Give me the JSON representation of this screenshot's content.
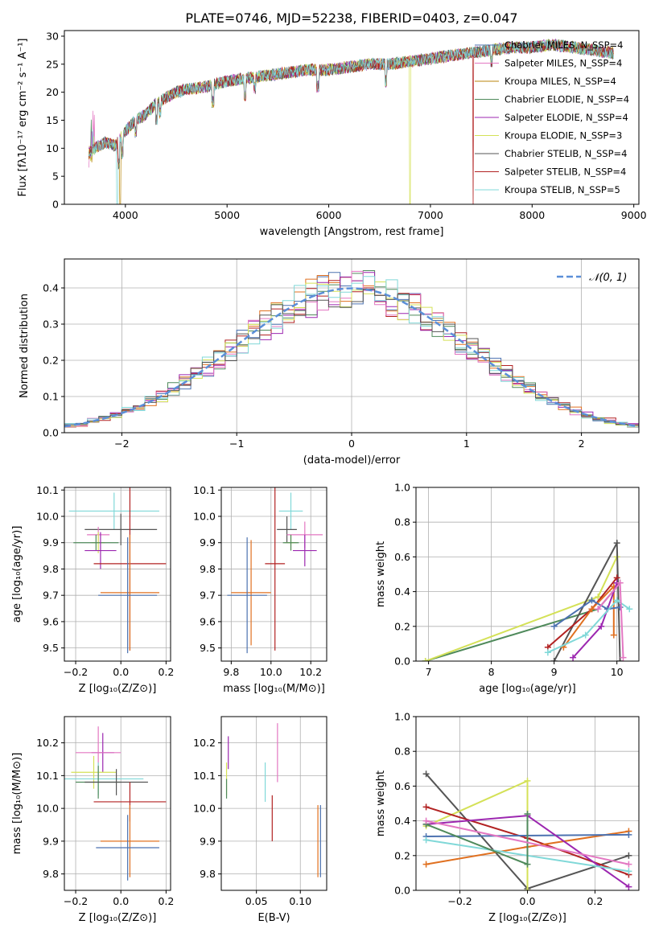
{
  "figure": {
    "title": "PLATE=0746, MJD=52238, FIBERID=0403, z=0.047"
  },
  "colors": {
    "cm": "#4c72b0",
    "sm": "#e377c2",
    "km": "#b8860b",
    "ce": "#4f8a5b",
    "se": "#9c27b0",
    "ke": "#d4e157",
    "cs": "#555555",
    "ss": "#b22222",
    "ks": "#80d8d8",
    "orange": "#e07020",
    "blue": "#5b8fd8"
  },
  "chart_data": [
    {
      "id": "spectrum",
      "type": "line",
      "xlabel": "wavelength [Angstrom, rest frame]",
      "ylabel": "Flux [fλ10⁻¹⁷ erg cm⁻² s⁻¹ A⁻¹]",
      "xlim": [
        3400,
        9050
      ],
      "ylim": [
        0,
        31
      ],
      "xticks": [
        4000,
        5000,
        6000,
        7000,
        8000,
        9000
      ],
      "yticks": [
        0,
        5,
        10,
        15,
        20,
        25,
        30
      ],
      "legend_position": "top-right",
      "continuum": {
        "x": [
          3640,
          3700,
          3800,
          3900,
          4000,
          4100,
          4200,
          4300,
          4400,
          4500,
          4600,
          4800,
          5000,
          5200,
          5400,
          5600,
          5800,
          6000,
          6200,
          6400,
          6600,
          6800,
          7000,
          7200,
          7400,
          7600,
          7800,
          8000,
          8200,
          8400,
          8600,
          8800
        ],
        "y": [
          9,
          10,
          11,
          10.5,
          13,
          15,
          16,
          18,
          19,
          20,
          20.5,
          21,
          22,
          22.5,
          23,
          23.5,
          24,
          24,
          24.5,
          25,
          25,
          25.5,
          26,
          26.5,
          27,
          27.5,
          28,
          28,
          28.5,
          28,
          27.5,
          27
        ]
      },
      "series": [
        {
          "name": "Chabrier MILES, N_SSP=4",
          "color_key": "cm",
          "dropout": null
        },
        {
          "name": "Salpeter MILES, N_SSP=4",
          "color_key": "sm",
          "dropout": null
        },
        {
          "name": "Kroupa MILES, N_SSP=4",
          "color_key": "km",
          "dropout": 3950
        },
        {
          "name": "Chabrier ELODIE, N_SSP=4",
          "color_key": "ce",
          "dropout": null
        },
        {
          "name": "Salpeter ELODIE, N_SSP=4",
          "color_key": "se",
          "dropout": null
        },
        {
          "name": "Kroupa ELODIE, N_SSP=3",
          "color_key": "ke",
          "dropout": 6800
        },
        {
          "name": "Chabrier STELIB, N_SSP=4",
          "color_key": "cs",
          "dropout": null
        },
        {
          "name": "Salpeter STELIB, N_SSP=4",
          "color_key": "ss",
          "dropout": 7420
        },
        {
          "name": "Kroupa STELIB, N_SSP=5",
          "color_key": "ks",
          "dropout": 3920
        }
      ]
    },
    {
      "id": "residuals",
      "type": "line",
      "xlabel": "(data-model)/error",
      "ylabel": "Normed distribution",
      "xlim": [
        -2.5,
        2.5
      ],
      "ylim": [
        0,
        0.48
      ],
      "xticks": [
        -2,
        -1,
        0,
        1,
        2
      ],
      "yticks": [
        0.0,
        0.1,
        0.2,
        0.3,
        0.4
      ],
      "grid": true,
      "legend_position": "top-right",
      "legend": [
        {
          "name": "𝒩(0, 1)",
          "color_key": "blue",
          "dashed": true
        }
      ],
      "bin_width": 0.1,
      "histogram_colors": [
        "cm",
        "orange",
        "ce",
        "ss",
        "se",
        "sm",
        "ke",
        "ks",
        "cs"
      ]
    },
    {
      "id": "age-vs-Z",
      "type": "scatter",
      "xlabel": "Z [log₁₀(Z/Z⊙)]",
      "ylabel": "age  [log₁₀(age/yr)]",
      "xlim": [
        -0.25,
        0.22
      ],
      "ylim": [
        9.45,
        10.11
      ],
      "xticks": [
        -0.2,
        0.0,
        0.2
      ],
      "yticks": [
        9.5,
        9.6,
        9.7,
        9.8,
        9.9,
        10.0,
        10.1
      ],
      "grid": true,
      "points": [
        {
          "x": -0.03,
          "y": 10.02,
          "xerr": 0.2,
          "yerr": 0.07,
          "color_key": "ks"
        },
        {
          "x": 0.0,
          "y": 9.95,
          "xerr": 0.16,
          "yerr": 0.06,
          "color_key": "cs"
        },
        {
          "x": -0.1,
          "y": 9.93,
          "xerr": 0.05,
          "yerr": 0.03,
          "color_key": "sm"
        },
        {
          "x": -0.1,
          "y": 9.9,
          "xerr": 0.03,
          "yerr": 0.04,
          "color_key": "ke"
        },
        {
          "x": -0.11,
          "y": 9.9,
          "xerr": 0.1,
          "yerr": 0.03,
          "color_key": "ce"
        },
        {
          "x": -0.09,
          "y": 9.87,
          "xerr": 0.07,
          "yerr": 0.07,
          "color_key": "se"
        },
        {
          "x": 0.04,
          "y": 9.82,
          "xerr": 0.16,
          "yerr": 0.33,
          "color_key": "ss"
        },
        {
          "x": 0.04,
          "y": 9.71,
          "xerr": 0.13,
          "yerr": 0.22,
          "color_key": "orange"
        },
        {
          "x": 0.03,
          "y": 9.7,
          "xerr": 0.13,
          "yerr": 0.22,
          "color_key": "cm"
        }
      ]
    },
    {
      "id": "age-vs-mass",
      "type": "scatter",
      "xlabel": "mass [log₁₀(M/M⊙)]",
      "ylabel": "",
      "xlim": [
        9.75,
        10.28
      ],
      "ylim": [
        9.45,
        10.11
      ],
      "xticks": [
        9.8,
        10.0,
        10.2
      ],
      "yticks": [
        9.5,
        9.6,
        9.7,
        9.8,
        9.9,
        10.0,
        10.1
      ],
      "grid": true,
      "points": [
        {
          "x": 10.1,
          "y": 10.02,
          "xerr": 0.06,
          "yerr": 0.07,
          "color_key": "ks"
        },
        {
          "x": 10.08,
          "y": 9.95,
          "xerr": 0.05,
          "yerr": 0.05,
          "color_key": "cs"
        },
        {
          "x": 10.17,
          "y": 9.93,
          "xerr": 0.09,
          "yerr": 0.05,
          "color_key": "sm"
        },
        {
          "x": 10.1,
          "y": 9.9,
          "xerr": 0.03,
          "yerr": 0.03,
          "color_key": "ke"
        },
        {
          "x": 10.1,
          "y": 9.9,
          "xerr": 0.04,
          "yerr": 0.03,
          "color_key": "ce"
        },
        {
          "x": 10.17,
          "y": 9.87,
          "xerr": 0.06,
          "yerr": 0.06,
          "color_key": "se"
        },
        {
          "x": 10.02,
          "y": 9.82,
          "xerr": 0.05,
          "yerr": 0.33,
          "color_key": "ss"
        },
        {
          "x": 9.9,
          "y": 9.71,
          "xerr": 0.1,
          "yerr": 0.2,
          "color_key": "orange"
        },
        {
          "x": 9.88,
          "y": 9.7,
          "xerr": 0.1,
          "yerr": 0.22,
          "color_key": "cm"
        }
      ]
    },
    {
      "id": "massweight-vs-age",
      "type": "line",
      "xlabel": "age  [log₁₀(age/yr)]",
      "ylabel": "mass weight",
      "xlim": [
        6.8,
        10.35
      ],
      "ylim": [
        0,
        1.0
      ],
      "xticks": [
        7,
        8,
        9,
        10
      ],
      "yticks": [
        0.0,
        0.2,
        0.4,
        0.6,
        0.8,
        1.0
      ],
      "grid": true,
      "series": [
        {
          "color_key": "ce",
          "x": [
            6.95,
            9.7,
            10.05
          ],
          "y": [
            0.0,
            0.3,
            0.45
          ]
        },
        {
          "color_key": "ke",
          "x": [
            6.95,
            9.7,
            10.0
          ],
          "y": [
            0.0,
            0.37,
            0.6
          ]
        },
        {
          "color_key": "cs",
          "x": [
            9.0,
            10.0,
            10.05
          ],
          "y": [
            0.0,
            0.68,
            0.0
          ]
        },
        {
          "color_key": "ss",
          "x": [
            8.9,
            9.6,
            10.0
          ],
          "y": [
            0.08,
            0.3,
            0.48
          ]
        },
        {
          "color_key": "orange",
          "x": [
            9.15,
            9.6,
            9.95,
            9.95
          ],
          "y": [
            0.08,
            0.3,
            0.43,
            0.15
          ]
        },
        {
          "color_key": "se",
          "x": [
            9.3,
            9.75,
            10.0
          ],
          "y": [
            0.02,
            0.2,
            0.45
          ]
        },
        {
          "color_key": "cm",
          "x": [
            9.0,
            9.6,
            9.85,
            10.05
          ],
          "y": [
            0.2,
            0.35,
            0.3,
            0.31
          ]
        },
        {
          "color_key": "ks",
          "x": [
            8.9,
            9.5,
            10.0,
            10.2
          ],
          "y": [
            0.05,
            0.15,
            0.35,
            0.3
          ]
        },
        {
          "color_key": "sm",
          "x": [
            9.7,
            10.05,
            10.1
          ],
          "y": [
            0.3,
            0.45,
            0.02
          ]
        }
      ]
    },
    {
      "id": "mass-vs-Z",
      "type": "scatter",
      "xlabel": "Z [log₁₀(Z/Z⊙)]",
      "ylabel": "mass [log₁₀(M/M⊙)]",
      "xlim": [
        -0.25,
        0.22
      ],
      "ylim": [
        9.75,
        10.28
      ],
      "xticks": [
        -0.2,
        0.0,
        0.2
      ],
      "yticks": [
        9.8,
        9.9,
        10.0,
        10.1,
        10.2
      ],
      "grid": true,
      "points": [
        {
          "x": -0.08,
          "y": 10.17,
          "xerr": 0.05,
          "yerr": 0.06,
          "color_key": "se"
        },
        {
          "x": -0.1,
          "y": 10.17,
          "xerr": 0.1,
          "yerr": 0.08,
          "color_key": "sm"
        },
        {
          "x": -0.12,
          "y": 10.11,
          "xerr": 0.1,
          "yerr": 0.05,
          "color_key": "ke"
        },
        {
          "x": -0.1,
          "y": 10.09,
          "xerr": 0.2,
          "yerr": 0.05,
          "color_key": "ks"
        },
        {
          "x": -0.1,
          "y": 10.08,
          "xerr": 0.1,
          "yerr": 0.05,
          "color_key": "ce"
        },
        {
          "x": -0.02,
          "y": 10.08,
          "xerr": 0.14,
          "yerr": 0.04,
          "color_key": "cs"
        },
        {
          "x": 0.04,
          "y": 10.02,
          "xerr": 0.16,
          "yerr": 0.06,
          "color_key": "ss"
        },
        {
          "x": 0.04,
          "y": 9.9,
          "xerr": 0.13,
          "yerr": 0.11,
          "color_key": "orange"
        },
        {
          "x": 0.03,
          "y": 9.88,
          "xerr": 0.14,
          "yerr": 0.1,
          "color_key": "cm"
        }
      ]
    },
    {
      "id": "mass-vs-EBV",
      "type": "scatter",
      "xlabel": "E(B-V)",
      "ylabel": "",
      "xlim": [
        0.01,
        0.13
      ],
      "ylim": [
        9.75,
        10.28
      ],
      "xticks": [
        0.05,
        0.1
      ],
      "yticks": [
        9.8,
        9.9,
        10.0,
        10.1,
        10.2
      ],
      "grid": true,
      "points": [
        {
          "x": 0.018,
          "y": 10.17,
          "xerr": 0.0,
          "yerr": 0.05,
          "color_key": "se"
        },
        {
          "x": 0.074,
          "y": 10.17,
          "xerr": 0.0,
          "yerr": 0.09,
          "color_key": "sm"
        },
        {
          "x": 0.016,
          "y": 10.09,
          "xerr": 0.0,
          "yerr": 0.05,
          "color_key": "ke"
        },
        {
          "x": 0.06,
          "y": 10.08,
          "xerr": 0.0,
          "yerr": 0.06,
          "color_key": "ks"
        },
        {
          "x": 0.016,
          "y": 10.06,
          "xerr": 0.0,
          "yerr": 0.03,
          "color_key": "ce"
        },
        {
          "x": 0.068,
          "y": 9.97,
          "xerr": 0.0,
          "yerr": 0.07,
          "color_key": "ss"
        },
        {
          "x": 0.12,
          "y": 9.9,
          "xerr": 0.0,
          "yerr": 0.11,
          "color_key": "orange"
        },
        {
          "x": 0.123,
          "y": 9.9,
          "xerr": 0.0,
          "yerr": 0.11,
          "color_key": "cm"
        }
      ]
    },
    {
      "id": "massweight-vs-Z",
      "type": "line",
      "xlabel": "Z [log₁₀(Z/Z⊙)]",
      "ylabel": "mass weight",
      "xlim": [
        -0.33,
        0.33
      ],
      "ylim": [
        0,
        1.0
      ],
      "xticks": [
        -0.2,
        0.0,
        0.2
      ],
      "yticks": [
        0.0,
        0.2,
        0.4,
        0.6,
        0.8,
        1.0
      ],
      "grid": true,
      "series": [
        {
          "color_key": "cs",
          "x": [
            -0.3,
            0.0,
            0.3
          ],
          "y": [
            0.67,
            0.01,
            0.2
          ]
        },
        {
          "color_key": "ke",
          "x": [
            -0.3,
            0.0,
            0.0
          ],
          "y": [
            0.37,
            0.63,
            0.0
          ]
        },
        {
          "color_key": "ss",
          "x": [
            -0.3,
            0.0,
            0.3
          ],
          "y": [
            0.48,
            0.3,
            0.09
          ]
        },
        {
          "color_key": "orange",
          "x": [
            -0.3,
            0.0,
            0.3
          ],
          "y": [
            0.15,
            0.25,
            0.34
          ]
        },
        {
          "color_key": "cm",
          "x": [
            -0.3,
            0.3
          ],
          "y": [
            0.31,
            0.32
          ]
        },
        {
          "color_key": "se",
          "x": [
            -0.3,
            0.0,
            0.3
          ],
          "y": [
            0.38,
            0.43,
            0.02
          ]
        },
        {
          "color_key": "ks",
          "x": [
            -0.3,
            0.3
          ],
          "y": [
            0.29,
            0.11
          ]
        },
        {
          "color_key": "ce",
          "x": [
            -0.3,
            0.0,
            0.0
          ],
          "y": [
            0.38,
            0.15,
            0.44
          ]
        },
        {
          "color_key": "sm",
          "x": [
            -0.3,
            0.3
          ],
          "y": [
            0.4,
            0.15
          ]
        }
      ]
    }
  ]
}
